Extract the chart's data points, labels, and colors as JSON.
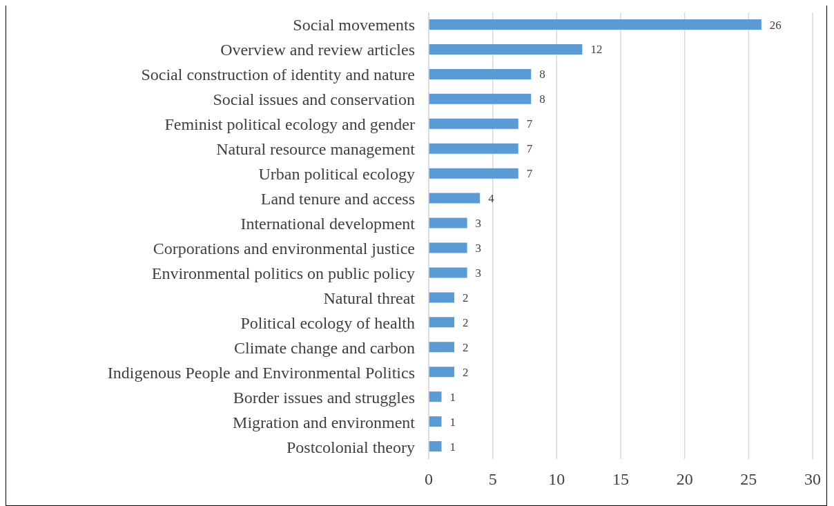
{
  "chart_data": {
    "type": "bar",
    "orientation": "horizontal",
    "categories": [
      "Social movements",
      "Overview and review articles",
      "Social construction of identity and nature",
      "Social issues and conservation",
      "Feminist political ecology and gender",
      "Natural resource management",
      "Urban political ecology",
      "Land tenure and access",
      "International development",
      "Corporations and environmental justice",
      "Environmental politics on public policy",
      "Natural threat",
      "Political ecology of health",
      "Climate change and carbon",
      "Indigenous People and Environmental Politics",
      "Border issues and struggles",
      "Migration and environment",
      "Postcolonial theory"
    ],
    "values": [
      26,
      12,
      8,
      8,
      7,
      7,
      7,
      4,
      3,
      3,
      3,
      2,
      2,
      2,
      2,
      1,
      1,
      1
    ],
    "color": "#5b9bd5",
    "xlim": [
      0,
      30
    ],
    "xticks": [
      0,
      5,
      10,
      15,
      20,
      25,
      30
    ],
    "grid": "x",
    "data_labels": true,
    "legend": false
  }
}
